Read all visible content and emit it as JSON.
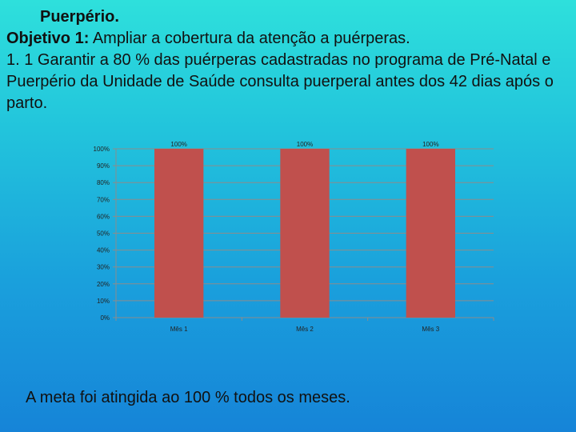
{
  "heading": {
    "title": "Puerpério.",
    "objective_label": "Objetivo 1:",
    "objective_text": " Ampliar a cobertura da atenção a puérperas.",
    "goal_text": "1. 1 Garantir a 80 % das puérperas cadastradas no programa de Pré-Natal e Puerpério da Unidade de Saúde consulta puerperal antes dos 42 dias após o parto."
  },
  "colors": {
    "bar": "#c0504d",
    "gridline": "#8c8c8c",
    "axis_text": "#222222"
  },
  "chart_data": {
    "type": "bar",
    "categories": [
      "Mês 1",
      "Mês 2",
      "Mês 3"
    ],
    "values": [
      100,
      100,
      100
    ],
    "data_labels": [
      "100%",
      "100%",
      "100%"
    ],
    "y_ticks": [
      "0%",
      "10%",
      "20%",
      "30%",
      "40%",
      "50%",
      "60%",
      "70%",
      "80%",
      "90%",
      "100%"
    ],
    "ylim": [
      0,
      100
    ],
    "grid": true,
    "legend": "none"
  },
  "footer": {
    "text": "A meta foi atingida ao 100 % todos os meses."
  }
}
